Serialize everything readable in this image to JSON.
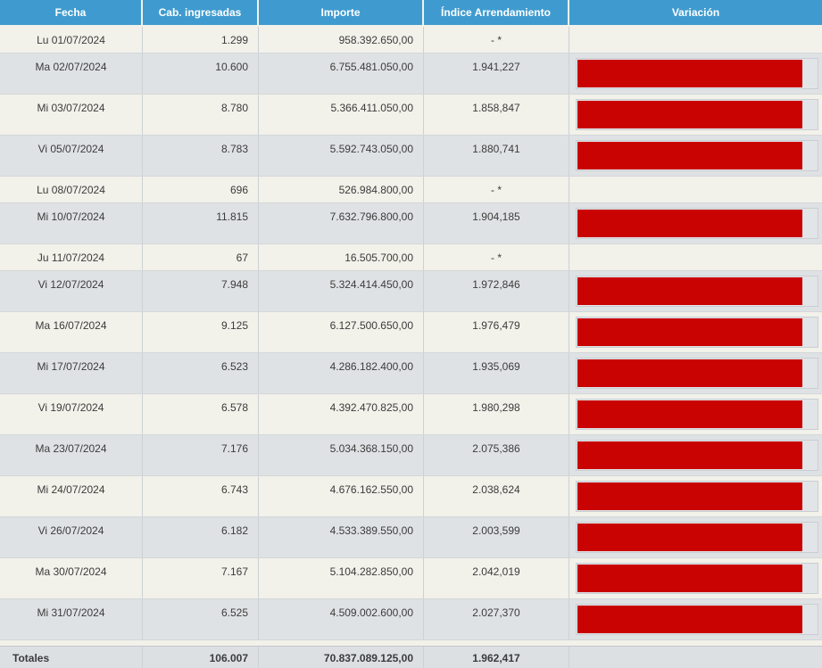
{
  "table": {
    "columns": [
      {
        "label": "Fecha"
      },
      {
        "label": "Cab. ingresadas"
      },
      {
        "label": "Importe"
      },
      {
        "label": "Índice Arrendamiento"
      },
      {
        "label": "Variación"
      }
    ],
    "rows": [
      {
        "fecha": "Lu 01/07/2024",
        "cab": "1.299",
        "importe": "958.392.650,00",
        "indice": "- *",
        "bar_pct": null
      },
      {
        "fecha": "Ma 02/07/2024",
        "cab": "10.600",
        "importe": "6.755.481.050,00",
        "indice": "1.941,227",
        "bar_pct": 94
      },
      {
        "fecha": "Mi 03/07/2024",
        "cab": "8.780",
        "importe": "5.366.411.050,00",
        "indice": "1.858,847",
        "bar_pct": 94
      },
      {
        "fecha": "Vi 05/07/2024",
        "cab": "8.783",
        "importe": "5.592.743.050,00",
        "indice": "1.880,741",
        "bar_pct": 94
      },
      {
        "fecha": "Lu 08/07/2024",
        "cab": "696",
        "importe": "526.984.800,00",
        "indice": "- *",
        "bar_pct": null
      },
      {
        "fecha": "Mi 10/07/2024",
        "cab": "11.815",
        "importe": "7.632.796.800,00",
        "indice": "1.904,185",
        "bar_pct": 94
      },
      {
        "fecha": "Ju 11/07/2024",
        "cab": "67",
        "importe": "16.505.700,00",
        "indice": "- *",
        "bar_pct": null
      },
      {
        "fecha": "Vi 12/07/2024",
        "cab": "7.948",
        "importe": "5.324.414.450,00",
        "indice": "1.972,846",
        "bar_pct": 94
      },
      {
        "fecha": "Ma 16/07/2024",
        "cab": "9.125",
        "importe": "6.127.500.650,00",
        "indice": "1.976,479",
        "bar_pct": 94
      },
      {
        "fecha": "Mi 17/07/2024",
        "cab": "6.523",
        "importe": "4.286.182.400,00",
        "indice": "1.935,069",
        "bar_pct": 94
      },
      {
        "fecha": "Vi 19/07/2024",
        "cab": "6.578",
        "importe": "4.392.470.825,00",
        "indice": "1.980,298",
        "bar_pct": 94
      },
      {
        "fecha": "Ma 23/07/2024",
        "cab": "7.176",
        "importe": "5.034.368.150,00",
        "indice": "2.075,386",
        "bar_pct": 94
      },
      {
        "fecha": "Mi 24/07/2024",
        "cab": "6.743",
        "importe": "4.676.162.550,00",
        "indice": "2.038,624",
        "bar_pct": 94
      },
      {
        "fecha": "Vi 26/07/2024",
        "cab": "6.182",
        "importe": "4.533.389.550,00",
        "indice": "2.003,599",
        "bar_pct": 94
      },
      {
        "fecha": "Ma 30/07/2024",
        "cab": "7.167",
        "importe": "5.104.282.850,00",
        "indice": "2.042,019",
        "bar_pct": 94
      },
      {
        "fecha": "Mi 31/07/2024",
        "cab": "6.525",
        "importe": "4.509.002.600,00",
        "indice": "2.027,370",
        "bar_pct": 94
      }
    ],
    "totals": {
      "label": "Totales",
      "cab": "106.007",
      "importe": "70.837.089.125,00",
      "indice": "1.962,417",
      "variacion": ""
    }
  },
  "colors": {
    "header_bg": "#3F9BCF",
    "header_text": "#FFFFFF",
    "row_cream": "#F2F1EA",
    "row_gray": "#DFE2E4",
    "bar_red": "#C90202",
    "bar_track_bg": "#E2E5E8",
    "bar_track_border": "#C9CED3",
    "text_color": "#3B3B3B",
    "totals_bg": "#DCE0E3"
  }
}
